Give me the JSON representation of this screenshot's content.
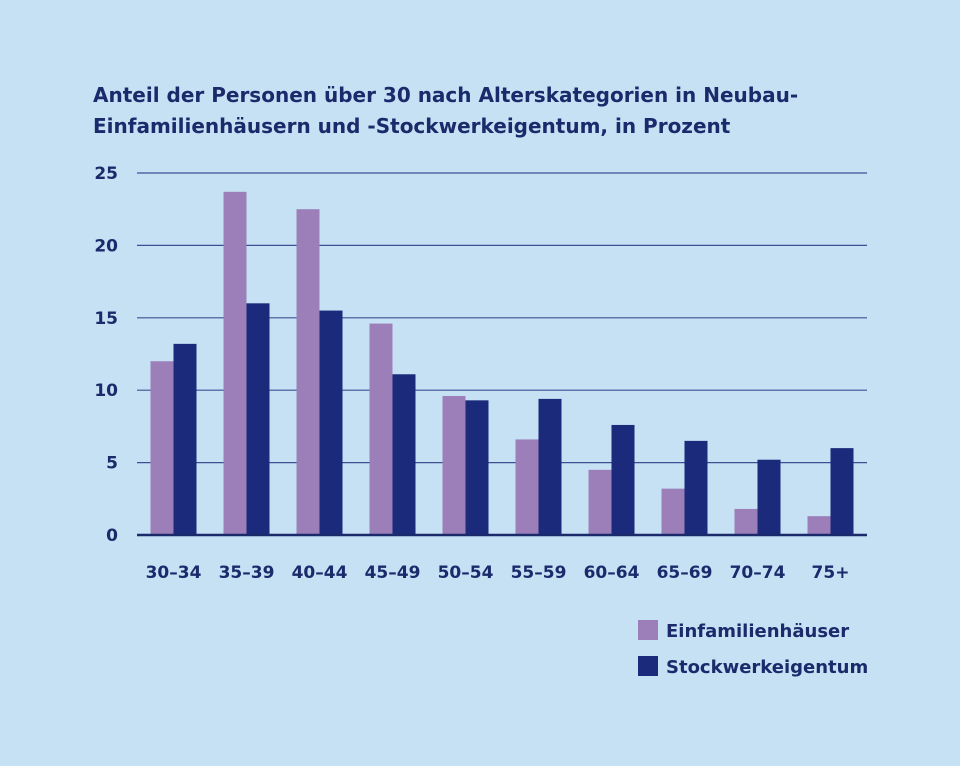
{
  "chart_data": {
    "type": "bar",
    "title": "Anteil der Personen über 30 nach Alterskategorien in Neubau-Einfamilienhäusern und -Stockwerkeigentum, in Prozent",
    "categories": [
      "30–34",
      "35–39",
      "40–44",
      "45–49",
      "50–54",
      "55–59",
      "60–64",
      "65–69",
      "70–74",
      "75+"
    ],
    "series": [
      {
        "name": "Einfamilienhäuser",
        "color": "#9c7fb8",
        "values": [
          12.0,
          23.7,
          22.5,
          14.6,
          9.6,
          6.6,
          4.5,
          3.2,
          1.8,
          1.3
        ]
      },
      {
        "name": "Stockwerkeigentum",
        "color": "#1b2a7a",
        "values": [
          13.2,
          16.0,
          15.5,
          11.1,
          9.3,
          9.4,
          7.6,
          6.5,
          5.2,
          6.0
        ]
      }
    ],
    "yticks": [
      "0",
      "5",
      "10",
      "15",
      "20",
      "25"
    ],
    "ylim": [
      0,
      25
    ],
    "xlabel": "",
    "ylabel": "",
    "grid": true,
    "legend_position": "bottom-right"
  }
}
